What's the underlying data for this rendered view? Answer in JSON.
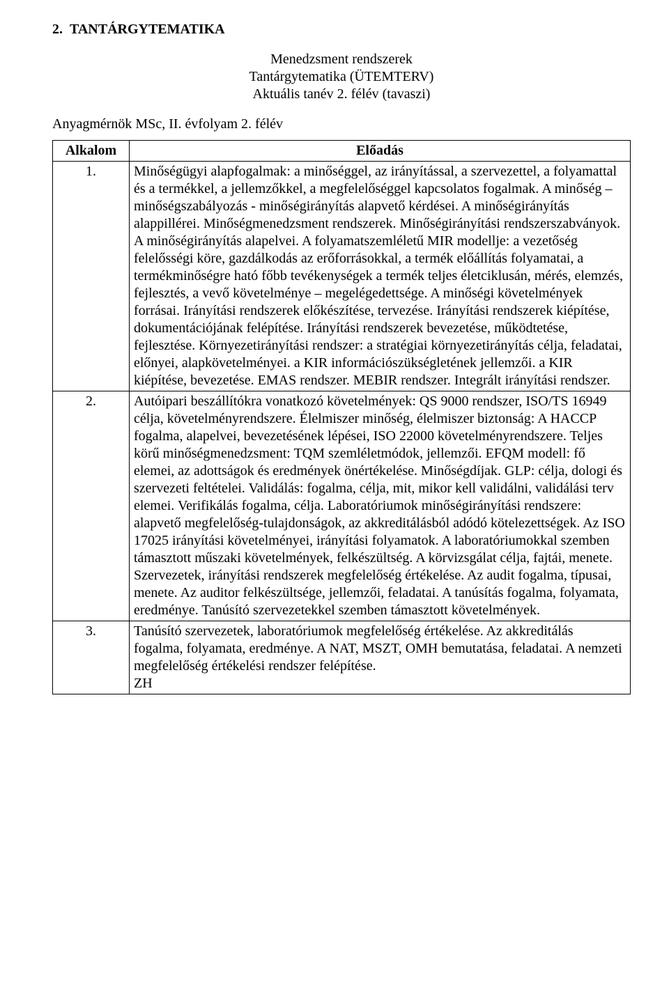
{
  "section_heading": "2.  TANTÁRGYTEMATIKA",
  "header_center": {
    "line1": "Menedzsment rendszerek",
    "line2": "Tantárgytematika (ÜTEMTERV)",
    "line3": "Aktuális tanév 2. félév (tavaszi)"
  },
  "subline": "Anyagmérnök MSc, II. évfolyam 2. félév",
  "table": {
    "col1": "Alkalom",
    "col2": "Előadás",
    "rows": [
      {
        "num": "1.",
        "body": "Minőségügyi alapfogalmak: a minőséggel, az irányítással, a szervezettel, a folyamattal és a termékkel, a jellemzőkkel, a megfelelőséggel kapcsolatos fogalmak. A minőség – minőségszabályozás - minőségirányítás alapvető kérdései. A minőségirányítás alappillérei. Minőségmenedzsment rendszerek. Minőségirányítási rendszerszabványok. A minőségirányítás alapelvei. A folyamatszemléletű MIR modellje: a vezetőség felelősségi köre, gazdálkodás az erőforrásokkal, a termék előállítás folyamatai, a termékminőségre ható főbb tevékenységek a termék teljes életciklusán, mérés, elemzés, fejlesztés, a vevő követelménye – megelégedettsége. A minőségi követelmények forrásai. Irányítási rendszerek előkészítése, tervezése. Irányítási rendszerek kiépítése, dokumentációjának felépítése. Irányítási rendszerek bevezetése, működtetése, fejlesztése. Környezetirányítási rendszer: a stratégiai környezetirányítás célja, feladatai, előnyei, alapkövetelményei. a KIR információszükségletének jellemzői. a KIR kiépítése, bevezetése. EMAS rendszer. MEBIR rendszer. Integrált irányítási rendszer."
      },
      {
        "num": "2.",
        "body": "Autóipari beszállítókra vonatkozó követelmények: QS 9000 rendszer, ISO/TS 16949 célja, követelményrendszere. Élelmiszer minőség, élelmiszer biztonság: A HACCP fogalma, alapelvei, bevezetésének lépései, ISO 22000 követelményrendszere. Teljes körű minőségmenedzsment: TQM szemléletmódok, jellemzői. EFQM modell: fő elemei, az adottságok és eredmények önértékelése. Minőségdíjak. GLP: célja, dologi és szervezeti feltételei. Validálás: fogalma, célja, mit, mikor kell validálni, validálási terv elemei. Verifikálás fogalma, célja. Laboratóriumok minőségirányítási rendszere: alapvető megfelelőség-tulajdonságok, az akkreditálásból adódó kötelezettségek. Az ISO 17025 irányítási követelményei, irányítási folyamatok. A laboratóriumokkal szemben támasztott műszaki követelmények, felkészültség. A körvizsgálat célja, fajtái, menete. Szervezetek, irányítási rendszerek megfelelőség értékelése. Az audit fogalma, típusai, menete. Az auditor felkészültsége, jellemzői, feladatai. A tanúsítás fogalma, folyamata, eredménye. Tanúsító szervezetekkel szemben támasztott követelmények."
      },
      {
        "num": "3.",
        "body": "Tanúsító szervezetek, laboratóriumok megfelelőség értékelése. Az akkreditálás fogalma, folyamata, eredménye. A NAT, MSZT, OMH bemutatása, feladatai. A nemzeti megfelelőség értékelési rendszer felépítése.\nZH"
      }
    ]
  }
}
